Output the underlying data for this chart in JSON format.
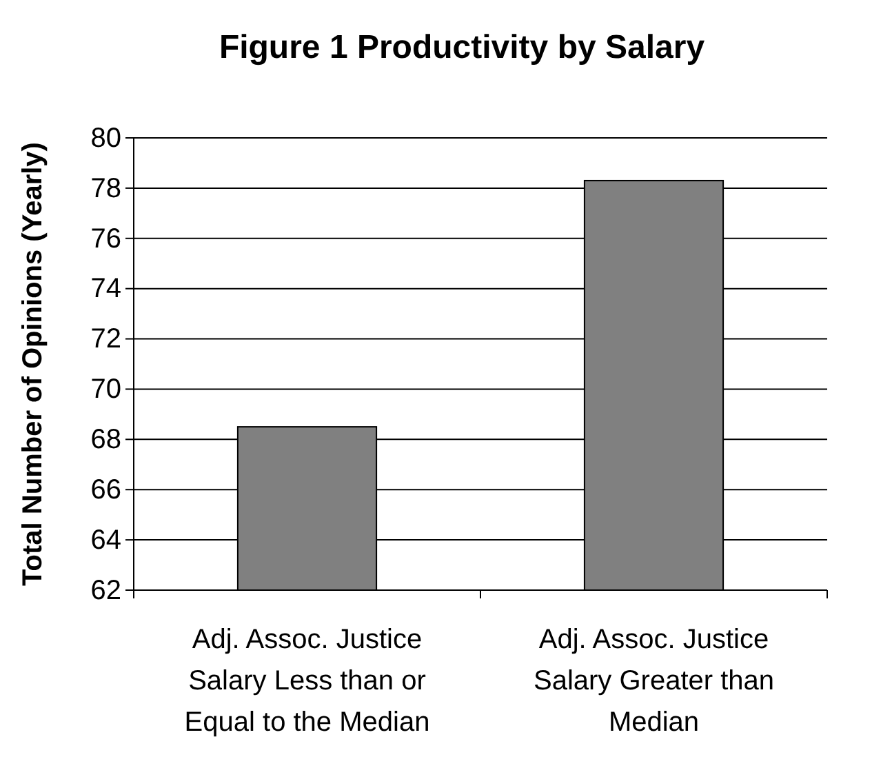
{
  "chart_data": {
    "type": "bar",
    "title": "Figure 1 Productivity by Salary",
    "ylabel": "Total Number of Opinions (Yearly)",
    "categories": [
      "Adj. Assoc. Justice Salary Less than or Equal to the Median",
      "Adj. Assoc. Justice Salary Greater than Median"
    ],
    "values": [
      68.5,
      78.3
    ],
    "color": "#808080",
    "ylim": [
      62,
      80
    ],
    "yticks": [
      62,
      64,
      66,
      68,
      70,
      72,
      74,
      76,
      78,
      80
    ],
    "grid": "y"
  }
}
